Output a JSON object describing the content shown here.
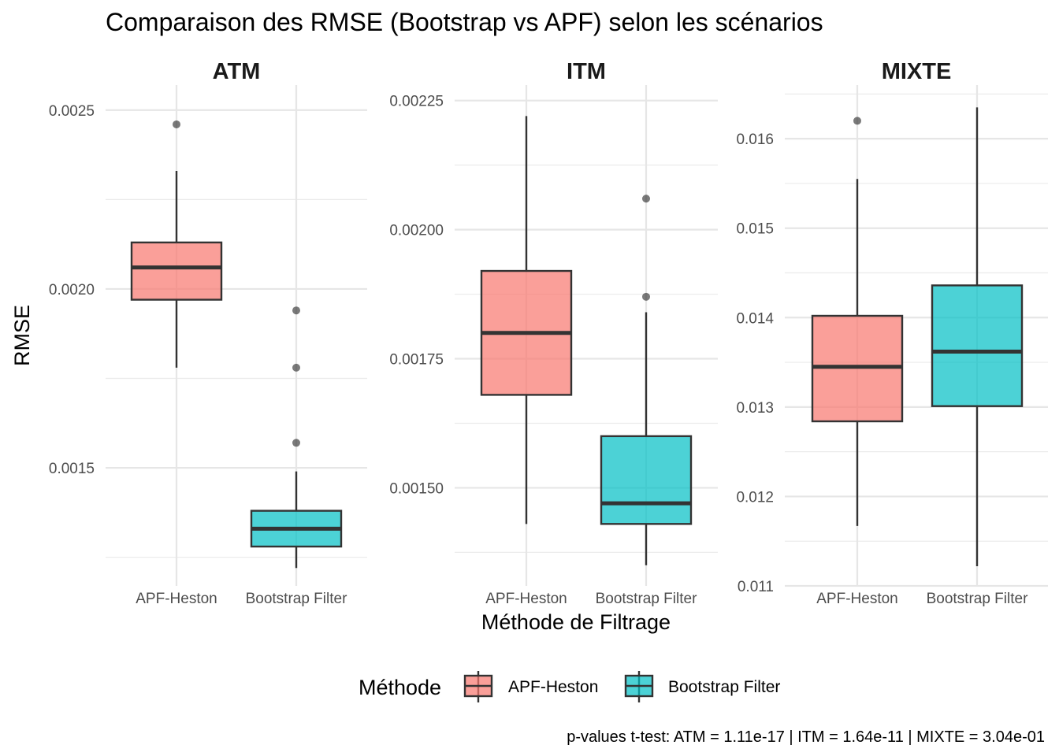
{
  "chart_data": {
    "type": "boxplot",
    "title": "Comparaison des RMSE (Bootstrap vs APF) selon les scénarios",
    "xlabel": "Méthode de Filtrage",
    "ylabel": "RMSE",
    "caption": "p-values t-test: ATM = 1.11e-17 | ITM = 1.64e-11 | MIXTE = 3.04e-01",
    "legend": {
      "title": "Méthode",
      "placement": "bottom",
      "entries": [
        {
          "label": "APF-Heston",
          "color": "#F8766D"
        },
        {
          "label": "Bootstrap Filter",
          "color": "#00BFC4"
        }
      ]
    },
    "grid": true,
    "panels": [
      {
        "name": "ATM",
        "ylim": [
          0.00117,
          0.00257
        ],
        "y_ticks": [
          0.0015,
          0.002,
          0.0025
        ],
        "y_tick_labels": [
          "0.0015",
          "0.0020",
          "0.0025"
        ],
        "categories": [
          "APF-Heston",
          "Bootstrap Filter"
        ],
        "boxes": [
          {
            "category": "APF-Heston",
            "min": 0.00178,
            "q1": 0.00197,
            "median": 0.00206,
            "q3": 0.00213,
            "max": 0.00233,
            "outliers": [
              0.00246
            ]
          },
          {
            "category": "Bootstrap Filter",
            "min": 0.00122,
            "q1": 0.00128,
            "median": 0.00133,
            "q3": 0.00138,
            "max": 0.00149,
            "outliers": [
              0.00157,
              0.00178,
              0.00194
            ]
          }
        ]
      },
      {
        "name": "ITM",
        "ylim": [
          0.00131,
          0.00228
        ],
        "y_ticks": [
          0.0015,
          0.00175,
          0.002,
          0.00225
        ],
        "y_tick_labels": [
          "0.00150",
          "0.00175",
          "0.00200",
          "0.00225"
        ],
        "categories": [
          "APF-Heston",
          "Bootstrap Filter"
        ],
        "boxes": [
          {
            "category": "APF-Heston",
            "min": 0.00143,
            "q1": 0.00168,
            "median": 0.0018,
            "q3": 0.00192,
            "max": 0.00222,
            "outliers": []
          },
          {
            "category": "Bootstrap Filter",
            "min": 0.00135,
            "q1": 0.00143,
            "median": 0.00147,
            "q3": 0.0016,
            "max": 0.00184,
            "outliers": [
              0.00187,
              0.00206
            ]
          }
        ]
      },
      {
        "name": "MIXTE",
        "ylim": [
          0.011,
          0.0166
        ],
        "y_ticks": [
          0.011,
          0.012,
          0.013,
          0.014,
          0.015,
          0.016
        ],
        "y_tick_labels": [
          "0.011",
          "0.012",
          "0.013",
          "0.014",
          "0.015",
          "0.016"
        ],
        "categories": [
          "APF-Heston",
          "Bootstrap Filter"
        ],
        "boxes": [
          {
            "category": "APF-Heston",
            "min": 0.01167,
            "q1": 0.01284,
            "median": 0.01345,
            "q3": 0.01402,
            "max": 0.01555,
            "outliers": [
              0.0162
            ]
          },
          {
            "category": "Bootstrap Filter",
            "min": 0.01122,
            "q1": 0.01301,
            "median": 0.01362,
            "q3": 0.01436,
            "max": 0.01635,
            "outliers": []
          }
        ]
      }
    ]
  }
}
